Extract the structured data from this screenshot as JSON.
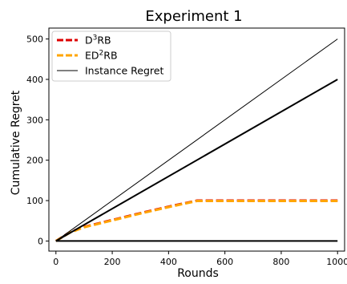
{
  "chart_data": {
    "type": "line",
    "title": "Experiment 1",
    "xlabel": "Rounds",
    "ylabel": "Cumulative Regret",
    "xlim": [
      -25,
      1025
    ],
    "ylim": [
      -25,
      527
    ],
    "xticks": [
      0,
      200,
      400,
      600,
      800,
      1000
    ],
    "yticks": [
      0,
      100,
      200,
      300,
      400,
      500
    ],
    "xtick_labels": [
      "0",
      "200",
      "400",
      "600",
      "800",
      "1000"
    ],
    "ytick_labels": [
      "0",
      "100",
      "200",
      "300",
      "400",
      "500"
    ],
    "grid": false,
    "legend_placement": "top-left",
    "legend": [
      {
        "key": "d3rb",
        "base": "D",
        "sup": "3",
        "rest": "RB",
        "color": "#dd0000",
        "style": "dashed",
        "width": 3
      },
      {
        "key": "ed2rb",
        "base": "ED",
        "sup": "2",
        "rest": "RB",
        "color": "#ffa500",
        "style": "dashed",
        "width": 3
      },
      {
        "key": "instance",
        "label": "Instance Regret",
        "color": "#000000",
        "style": "solid",
        "width": 1
      }
    ],
    "series": [
      {
        "key": "d3rb",
        "color": "#dd0000",
        "style": "dashed",
        "width": 3,
        "x": [
          0,
          50,
          100,
          200,
          300,
          400,
          500,
          600,
          700,
          800,
          900,
          1000
        ],
        "y": [
          0,
          22,
          35,
          52,
          69,
          85,
          100,
          100,
          100,
          100,
          100,
          100
        ]
      },
      {
        "key": "ed2rb",
        "color": "#ffa500",
        "style": "dashed",
        "width": 3,
        "x": [
          0,
          50,
          100,
          200,
          300,
          400,
          500,
          600,
          700,
          800,
          900,
          1000
        ],
        "y": [
          0,
          21,
          34,
          51,
          68,
          84,
          99,
          99,
          99,
          99,
          99,
          99
        ]
      },
      {
        "key": "instance-0",
        "color": "#000000",
        "style": "solid",
        "width": 1,
        "x": [
          0,
          1000
        ],
        "y": [
          0,
          500
        ]
      },
      {
        "key": "instance-1",
        "color": "#000000",
        "style": "solid",
        "width": 2,
        "x": [
          0,
          1000
        ],
        "y": [
          0,
          400
        ]
      },
      {
        "key": "instance-2",
        "color": "#000000",
        "style": "solid",
        "width": 2,
        "x": [
          0,
          1000
        ],
        "y": [
          0,
          0
        ]
      }
    ]
  }
}
